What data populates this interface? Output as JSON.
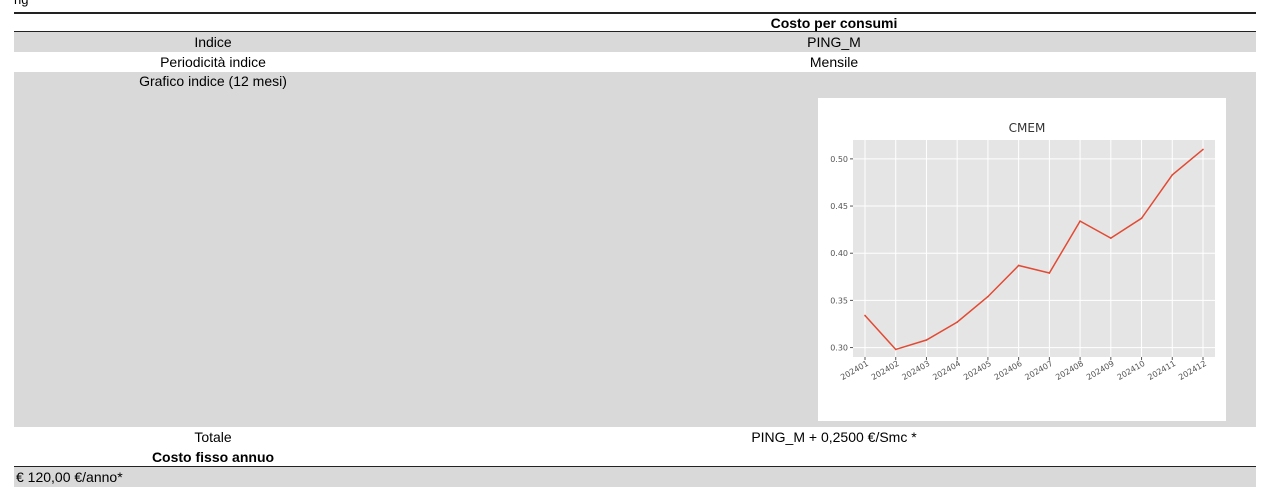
{
  "header_row": {
    "left": "",
    "right": "Costo per consumi"
  },
  "rows": {
    "indice": {
      "label": "Indice",
      "value": "PING_M"
    },
    "periodicita": {
      "label": "Periodicità indice",
      "value": "Mensile"
    },
    "grafico": {
      "label": "Grafico indice (12 mesi)"
    },
    "totale": {
      "label": "Totale",
      "value": "PING_M + 0,2500 €/Smc *"
    }
  },
  "costo_fisso": {
    "title": "Costo fisso annuo",
    "value": "€ 120,00 €/anno*"
  },
  "chart_data": {
    "type": "line",
    "title": "CMEM",
    "categories": [
      "202401",
      "202402",
      "202403",
      "202404",
      "202405",
      "202406",
      "202407",
      "202408",
      "202409",
      "202410",
      "202411",
      "202412"
    ],
    "series": [
      {
        "values": [
          0.334,
          0.298,
          0.308,
          0.327,
          0.354,
          0.387,
          0.379,
          0.434,
          0.416,
          0.437,
          0.483,
          0.51
        ]
      }
    ],
    "yticks": [
      "0.30",
      "0.35",
      "0.40",
      "0.45",
      "0.50"
    ],
    "ylim": [
      0.29,
      0.52
    ],
    "grid": true,
    "line_color": "#e24a33"
  }
}
